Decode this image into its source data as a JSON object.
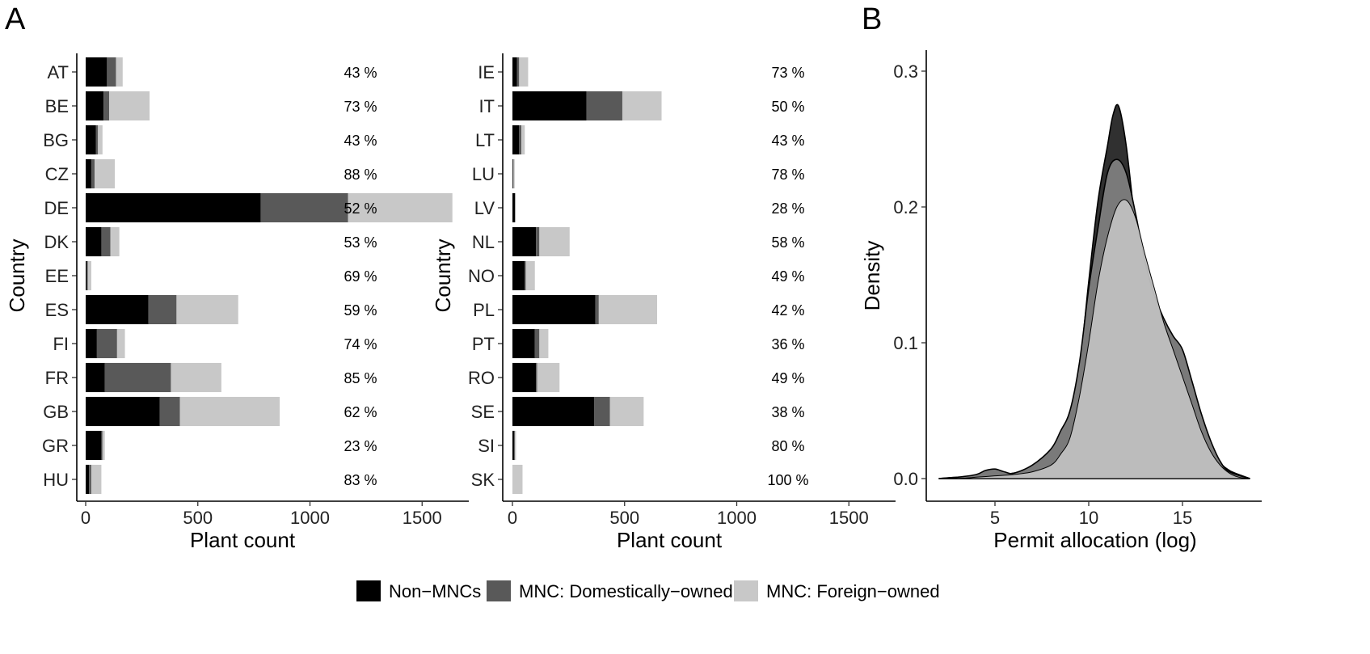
{
  "panel_labels": [
    "A",
    "B"
  ],
  "legend": {
    "entries": [
      {
        "label": "Non−MNCs",
        "color": "#000000"
      },
      {
        "label": "MNC: Domestically−owned",
        "color": "#595959"
      },
      {
        "label": "MNC: Foreign−owned",
        "color": "#c8c8c8"
      }
    ]
  },
  "chart_data": [
    {
      "type": "bar",
      "orientation": "horizontal",
      "stacked": true,
      "panel": "A",
      "ylabel": "Country",
      "xlabel": "Plant count",
      "xlim": [
        0,
        1600
      ],
      "xticks": [
        0,
        500,
        1000,
        1500
      ],
      "categories": [
        "AT",
        "BE",
        "BG",
        "CZ",
        "DE",
        "DK",
        "EE",
        "ES",
        "FI",
        "FR",
        "GB",
        "GR",
        "HU"
      ],
      "series": [
        {
          "name": "Non−MNCs",
          "values": [
            95,
            80,
            45,
            25,
            780,
            70,
            5,
            280,
            50,
            85,
            330,
            70,
            15
          ]
        },
        {
          "name": "MNC: Domestically−owned",
          "values": [
            40,
            25,
            10,
            15,
            390,
            40,
            5,
            125,
            90,
            295,
            90,
            5,
            10
          ]
        },
        {
          "name": "MNC: Foreign−owned",
          "values": [
            30,
            180,
            20,
            90,
            465,
            40,
            15,
            275,
            35,
            225,
            445,
            10,
            45
          ]
        }
      ],
      "share_labels": [
        "43 %",
        "73 %",
        "43 %",
        "88 %",
        "52 %",
        "53 %",
        "69 %",
        "59 %",
        "74 %",
        "85 %",
        "62 %",
        "23 %",
        "83 %"
      ]
    },
    {
      "type": "bar",
      "orientation": "horizontal",
      "stacked": true,
      "panel": "A",
      "ylabel": "Country",
      "xlabel": "Plant count",
      "xlim": [
        0,
        1600
      ],
      "xticks": [
        0,
        500,
        1000,
        1500
      ],
      "categories": [
        "IE",
        "IT",
        "LT",
        "LU",
        "LV",
        "NL",
        "NO",
        "PL",
        "PT",
        "RO",
        "SE",
        "SI",
        "SK"
      ],
      "series": [
        {
          "name": "Non−MNCs",
          "values": [
            20,
            330,
            30,
            2,
            12,
            105,
            55,
            370,
            100,
            105,
            365,
            8,
            0
          ]
        },
        {
          "name": "MNC: Domestically−owned",
          "values": [
            10,
            160,
            10,
            3,
            0,
            15,
            5,
            15,
            20,
            5,
            70,
            3,
            0
          ]
        },
        {
          "name": "MNC: Foreign−owned",
          "values": [
            40,
            175,
            15,
            5,
            0,
            135,
            40,
            260,
            40,
            100,
            150,
            5,
            45
          ]
        }
      ],
      "share_labels": [
        "73 %",
        "50 %",
        "43 %",
        "78 %",
        "28 %",
        "58 %",
        "49 %",
        "42 %",
        "36 %",
        "49 %",
        "38 %",
        "80 %",
        "100 %"
      ]
    },
    {
      "type": "area",
      "panel": "B",
      "xlabel": "Permit allocation (log)",
      "ylabel": "Density",
      "xlim": [
        1.7,
        19
      ],
      "ylim": [
        0,
        0.31
      ],
      "xticks": [
        5,
        10,
        15
      ],
      "yticks": [
        "0.0",
        "0.1",
        "0.2",
        "0.3"
      ],
      "series": [
        {
          "name": "Non−MNCs",
          "color": "#303030",
          "x": [
            2,
            3,
            4,
            5,
            6,
            7,
            8,
            8.5,
            9,
            9.5,
            10,
            10.5,
            11,
            11.3,
            11.6,
            12,
            12.5,
            13,
            13.5,
            14,
            14.5,
            15,
            15.5,
            16,
            16.5,
            17,
            17.5,
            18,
            18.6
          ],
          "y": [
            0.0,
            0.001,
            0.001,
            0.002,
            0.004,
            0.006,
            0.017,
            0.028,
            0.045,
            0.08,
            0.145,
            0.205,
            0.245,
            0.268,
            0.274,
            0.245,
            0.185,
            0.135,
            0.1,
            0.085,
            0.078,
            0.08,
            0.065,
            0.045,
            0.025,
            0.012,
            0.006,
            0.003,
            0.0
          ]
        },
        {
          "name": "MNC: Domestically−owned",
          "color": "#7a7a7a",
          "x": [
            2,
            3,
            4,
            4.5,
            5,
            5.5,
            6,
            7,
            8,
            8.5,
            9,
            9.5,
            10,
            10.5,
            11,
            11.5,
            12,
            12.5,
            13,
            13.5,
            14,
            14.5,
            15,
            15.5,
            16,
            16.5,
            17,
            17.5,
            18.6
          ],
          "y": [
            0.0,
            0.001,
            0.003,
            0.006,
            0.007,
            0.005,
            0.004,
            0.01,
            0.022,
            0.035,
            0.05,
            0.085,
            0.14,
            0.185,
            0.225,
            0.235,
            0.225,
            0.195,
            0.16,
            0.135,
            0.118,
            0.105,
            0.095,
            0.072,
            0.048,
            0.028,
            0.013,
            0.005,
            0.0
          ]
        },
        {
          "name": "MNC: Foreign−owned",
          "color": "#c0c0c0",
          "x": [
            2,
            3,
            4,
            5,
            6,
            7,
            8,
            8.5,
            9,
            9.5,
            10,
            10.5,
            11,
            11.5,
            12,
            12.5,
            13,
            13.5,
            14,
            14.5,
            15,
            15.5,
            16,
            16.5,
            17,
            17.5,
            18,
            18.6
          ],
          "y": [
            0.0,
            0.0,
            0.001,
            0.002,
            0.003,
            0.005,
            0.01,
            0.018,
            0.03,
            0.06,
            0.1,
            0.145,
            0.178,
            0.2,
            0.205,
            0.192,
            0.165,
            0.14,
            0.115,
            0.095,
            0.075,
            0.055,
            0.035,
            0.02,
            0.01,
            0.004,
            0.001,
            0.0
          ]
        }
      ]
    }
  ]
}
